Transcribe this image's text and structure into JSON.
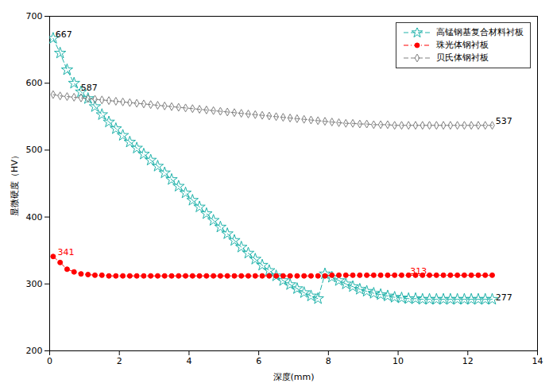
{
  "chart_data": {
    "type": "line",
    "title": "",
    "xlabel": "深度(mm)",
    "ylabel": "显微硬度（HV）",
    "xlim": [
      0,
      14
    ],
    "ylim": [
      200,
      700
    ],
    "xticks": [
      0,
      2,
      4,
      6,
      8,
      10,
      12,
      14
    ],
    "yticks": [
      200,
      300,
      400,
      500,
      600,
      700
    ],
    "grid": false,
    "legend": "upper right",
    "x": [
      0.1,
      0.3,
      0.5,
      0.7,
      0.9,
      1.1,
      1.3,
      1.5,
      1.7,
      1.9,
      2.1,
      2.3,
      2.5,
      2.7,
      2.9,
      3.1,
      3.3,
      3.5,
      3.7,
      3.9,
      4.1,
      4.3,
      4.5,
      4.7,
      4.9,
      5.1,
      5.3,
      5.5,
      5.7,
      5.9,
      6.1,
      6.3,
      6.5,
      6.7,
      6.9,
      7.1,
      7.3,
      7.5,
      7.7,
      7.9,
      8.1,
      8.3,
      8.5,
      8.7,
      8.9,
      9.1,
      9.3,
      9.5,
      9.7,
      9.9,
      10.1,
      10.3,
      10.5,
      10.7,
      10.9,
      11.1,
      11.3,
      11.5,
      11.7,
      11.9,
      12.1,
      12.3,
      12.5,
      12.7
    ],
    "series": [
      {
        "name": "高锰钢基复合材料衬板",
        "color": "#20B2AA",
        "marker": "star-open",
        "line_style": "dashed",
        "values": [
          667,
          645,
          620,
          600,
          587,
          577,
          565,
          553,
          542,
          532,
          522,
          512,
          503,
          494,
          485,
          476,
          466,
          456,
          446,
          436,
          425,
          415,
          405,
          395,
          385,
          375,
          365,
          355,
          346,
          337,
          328,
          320,
          312,
          305,
          299,
          293,
          287,
          282,
          278,
          315,
          310,
          305,
          300,
          296,
          292,
          289,
          286,
          284,
          282,
          280,
          279,
          278,
          278,
          277,
          277,
          277,
          277,
          277,
          277,
          277,
          277,
          277,
          277,
          277
        ]
      },
      {
        "name": "珠光体钢衬板",
        "color": "#FF0000",
        "marker": "circle",
        "line_style": "dashdot",
        "values": [
          341,
          332,
          322,
          318,
          315,
          314,
          313,
          313,
          312,
          312,
          312,
          312,
          312,
          312,
          312,
          312,
          312,
          312,
          312,
          312,
          312,
          312,
          312,
          312,
          312,
          312,
          312,
          312,
          312,
          312,
          312,
          312,
          312,
          312,
          312,
          312,
          312,
          312,
          312,
          312,
          313,
          313,
          313,
          313,
          313,
          313,
          313,
          313,
          313,
          313,
          313,
          313,
          313,
          313,
          313,
          313,
          313,
          313,
          313,
          313,
          313,
          313,
          313,
          313
        ]
      },
      {
        "name": "贝氏体钢衬板",
        "color": "#808080",
        "marker": "diamond-open",
        "line_style": "dashed",
        "values": [
          583,
          581,
          580,
          579,
          578,
          577,
          576,
          575,
          574,
          573,
          572,
          571,
          570,
          569,
          568,
          567,
          566,
          565,
          564,
          563,
          562,
          561,
          560,
          559,
          558,
          557,
          556,
          555,
          554,
          553,
          552,
          551,
          550,
          549,
          548,
          547,
          546,
          545,
          544,
          543,
          542,
          541,
          540,
          540,
          539,
          539,
          538,
          538,
          538,
          537,
          537,
          537,
          537,
          537,
          537,
          537,
          537,
          537,
          537,
          537,
          537,
          537,
          537,
          537
        ]
      }
    ],
    "annotations": [
      {
        "text": "667",
        "x": 0.12,
        "y": 669,
        "color": "black"
      },
      {
        "text": "587",
        "x": 0.85,
        "y": 589,
        "color": "black"
      },
      {
        "text": "277",
        "x": 12.75,
        "y": 275,
        "color": "black"
      },
      {
        "text": "341",
        "x": 0.18,
        "y": 343,
        "color": "#FF0000"
      },
      {
        "text": "313",
        "x": 10.3,
        "y": 315,
        "color": "#FF0000"
      },
      {
        "text": "537",
        "x": 12.75,
        "y": 539,
        "color": "black"
      }
    ]
  }
}
